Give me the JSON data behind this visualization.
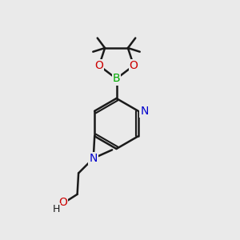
{
  "bg_color": "#eaeaea",
  "bond_color": "#1a1a1a",
  "bond_width": 1.8,
  "atom_colors": {
    "B": "#00aa00",
    "O": "#cc0000",
    "N": "#0000cc",
    "H": "#1a1a1a",
    "C": "#1a1a1a"
  },
  "font_size_atom": 10,
  "font_size_H": 9
}
